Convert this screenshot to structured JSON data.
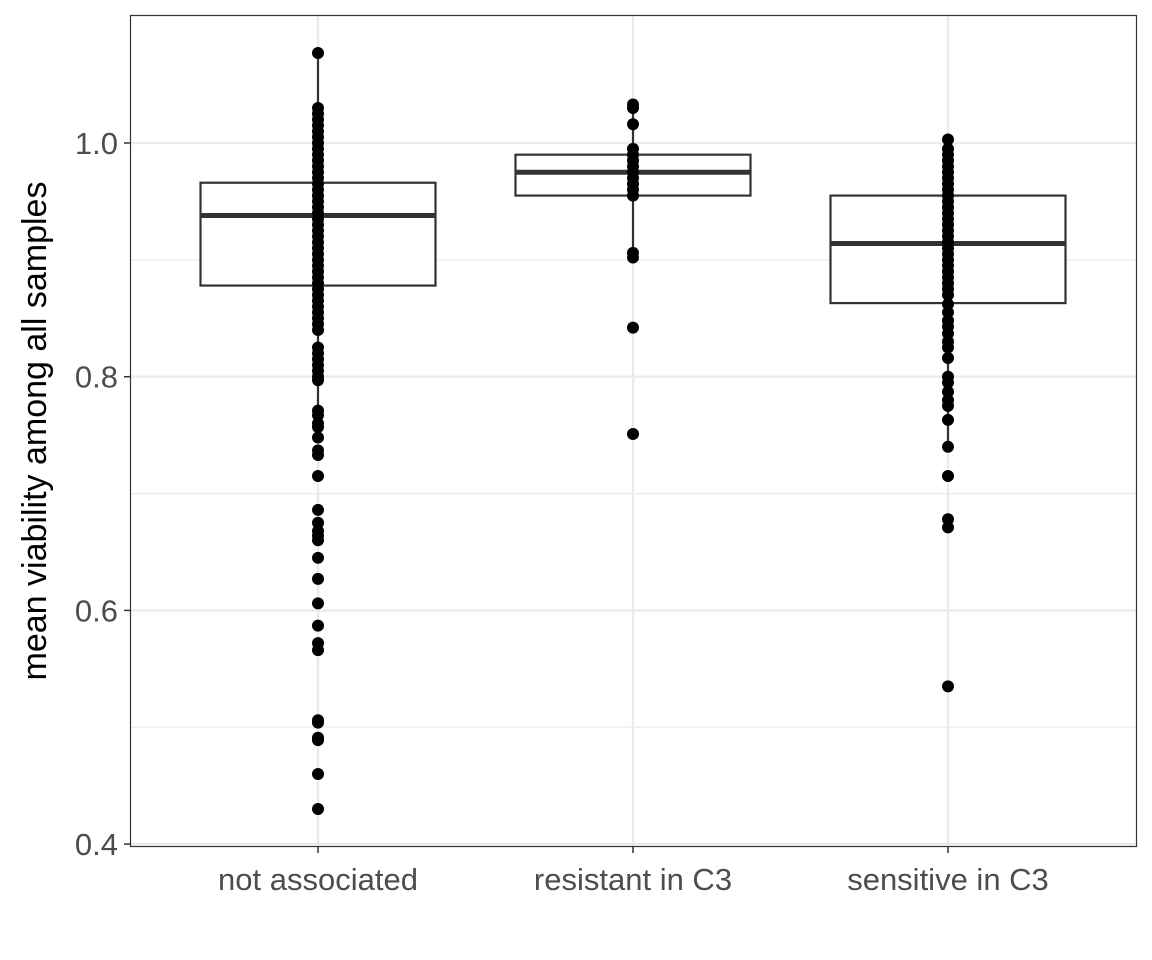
{
  "chart_data": {
    "type": "box",
    "title": "",
    "xlabel": "",
    "ylabel": "mean viability among all samples",
    "ylim": [
      0.395,
      1.106
    ],
    "yticks": [
      0.4,
      0.6,
      0.8,
      1.0
    ],
    "ytick_labels": [
      "0.4",
      "0.6",
      "0.8",
      "1.0"
    ],
    "y_minor_ticks": [
      0.5,
      0.7,
      0.9
    ],
    "grid": true,
    "categories": [
      "not associated",
      "resistant in C3",
      "sensitive in C3"
    ],
    "boxes": [
      {
        "category": "not associated",
        "whisker_low": 0.775,
        "q1": 0.878,
        "median": 0.938,
        "q3": 0.966,
        "whisker_high": 1.077
      },
      {
        "category": "resistant in C3",
        "whisker_low": 0.902,
        "q1": 0.955,
        "median": 0.975,
        "q3": 0.99,
        "whisker_high": 1.033
      },
      {
        "category": "sensitive in C3",
        "whisker_low": 0.74,
        "q1": 0.863,
        "median": 0.914,
        "q3": 0.955,
        "whisker_high": 1.003
      }
    ],
    "points": [
      {
        "category": "not associated",
        "values": [
          1.077,
          1.03,
          1.025,
          1.02,
          1.015,
          1.01,
          1.005,
          1.0,
          0.995,
          0.99,
          0.985,
          0.98,
          0.975,
          0.97,
          0.965,
          0.96,
          0.955,
          0.95,
          0.945,
          0.94,
          0.935,
          0.93,
          0.925,
          0.92,
          0.915,
          0.91,
          0.905,
          0.9,
          0.895,
          0.89,
          0.885,
          0.88,
          0.875,
          0.87,
          0.865,
          0.86,
          0.855,
          0.85,
          0.845,
          0.84,
          0.825,
          0.82,
          0.815,
          0.81,
          0.805,
          0.8,
          0.797,
          0.771,
          0.767,
          0.76,
          0.757,
          0.748,
          0.737,
          0.733,
          0.715,
          0.686,
          0.675,
          0.668,
          0.664,
          0.66,
          0.645,
          0.627,
          0.606,
          0.587,
          0.572,
          0.566,
          0.506,
          0.504,
          0.491,
          0.489,
          0.46,
          0.43
        ]
      },
      {
        "category": "resistant in C3",
        "values": [
          1.033,
          1.03,
          1.016,
          0.995,
          0.99,
          0.985,
          0.98,
          0.975,
          0.97,
          0.965,
          0.96,
          0.955,
          0.906,
          0.902,
          0.842,
          0.751
        ]
      },
      {
        "category": "sensitive in C3",
        "values": [
          1.003,
          0.995,
          0.99,
          0.985,
          0.98,
          0.975,
          0.97,
          0.965,
          0.96,
          0.955,
          0.95,
          0.945,
          0.94,
          0.935,
          0.93,
          0.925,
          0.92,
          0.915,
          0.91,
          0.905,
          0.9,
          0.895,
          0.89,
          0.885,
          0.88,
          0.875,
          0.87,
          0.862,
          0.855,
          0.848,
          0.843,
          0.837,
          0.83,
          0.825,
          0.816,
          0.8,
          0.795,
          0.787,
          0.78,
          0.775,
          0.763,
          0.74,
          0.715,
          0.678,
          0.671,
          0.535
        ]
      }
    ],
    "colors": {
      "points": "#000000",
      "box": "#333333",
      "grid": "#ebebeb",
      "panel_border": "#333333"
    }
  }
}
